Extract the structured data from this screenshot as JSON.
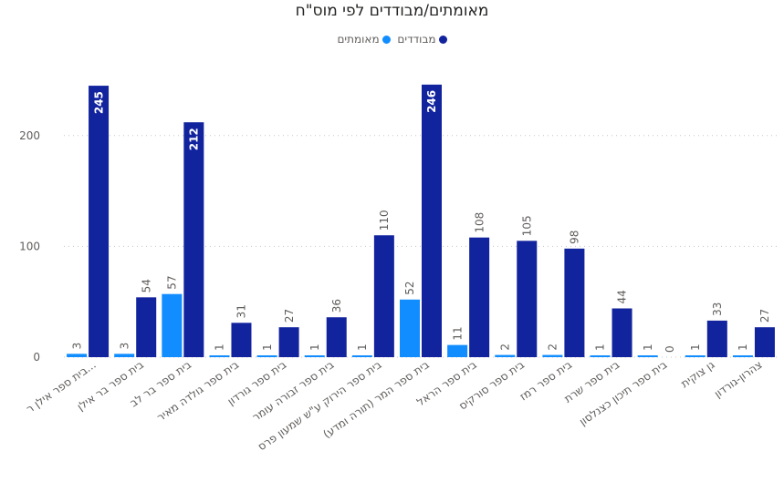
{
  "chart_data": {
    "type": "bar",
    "title": "מאומתים/מבודדים לפי מוס\"ח",
    "legend_position": "top-center",
    "grid": true,
    "ylim": [
      0,
      250
    ],
    "yticks": [
      0,
      100,
      200
    ],
    "categories": [
      "בית ספר אילן ר...",
      "בית ספר בר אילן",
      "בית ספר בר לב",
      "בית ספר גולדה מאיר",
      "בית ספר גורדון",
      "בית ספר זבורה עומר",
      "בית ספר הירוק ע\"ש שמעון פרס",
      "בית ספר המר (תורה ומדע)",
      "בית ספר הראל",
      "בית ספר סורקיס",
      "בית ספר רמז",
      "בית ספר שרת",
      "בית ספר תיכון כצנלסון",
      "גן צוקית",
      "צהרון-גורדון"
    ],
    "series": [
      {
        "name": "מאומתים",
        "color": "#118dff",
        "values": [
          3,
          3,
          57,
          1,
          1,
          1,
          1,
          52,
          11,
          2,
          2,
          1,
          1,
          1,
          1
        ]
      },
      {
        "name": "מבודדים",
        "color": "#12239e",
        "values": [
          245,
          54,
          212,
          31,
          27,
          36,
          110,
          246,
          108,
          105,
          98,
          44,
          0,
          33,
          27
        ]
      }
    ]
  }
}
